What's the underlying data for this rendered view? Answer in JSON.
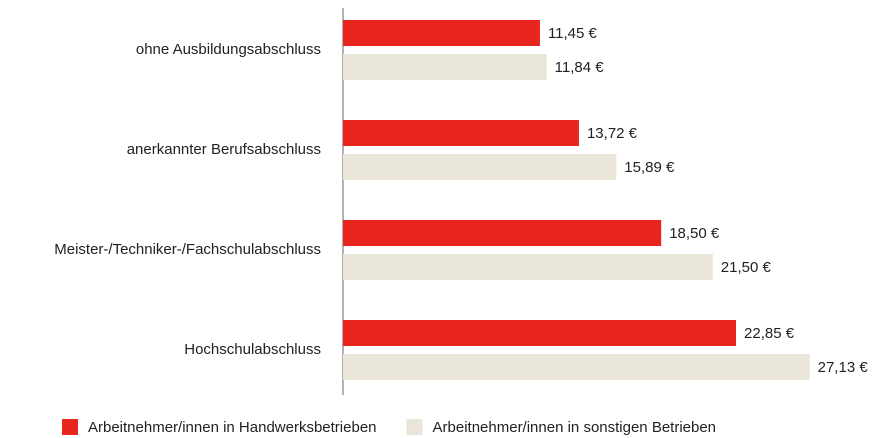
{
  "chart_data": {
    "type": "barh",
    "categories": [
      "ohne Ausbildungsabschluss",
      "anerkannter Berufsabschluss",
      "Meister-/Techniker-/Fachschulabschluss",
      "Hochschulabschluss"
    ],
    "series": [
      {
        "name": "Arbeitnehmer/innen in Handwerksbetrieben",
        "color": "#e8251f",
        "values": [
          11.45,
          13.72,
          18.5,
          22.85
        ],
        "value_labels": [
          "11,45 €",
          "13,72 €",
          "18,50 €",
          "22,85 €"
        ]
      },
      {
        "name": "Arbeitnehmer/innen in sonstigen Betrieben",
        "color": "#e9e5d9",
        "values": [
          11.84,
          15.89,
          21.5,
          27.13
        ],
        "value_labels": [
          "11,84 €",
          "15,89 €",
          "21,50 €",
          "27,13 €"
        ]
      }
    ],
    "xlim": [
      0,
      30
    ],
    "legend": "bottom"
  }
}
